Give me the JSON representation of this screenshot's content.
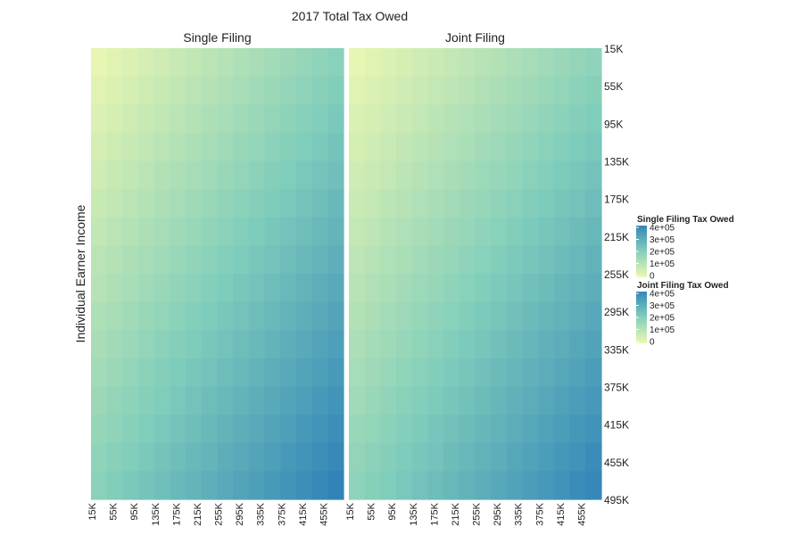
{
  "chart_data": {
    "type": "heatmap",
    "title": "2017 Total Tax Owed",
    "ylabel": "Individual Earner Income",
    "xlabel": "",
    "panels": [
      {
        "name": "Single Filing",
        "z_corners": {
          "top_left": 0,
          "top_right": 190000,
          "bottom_left": 190000,
          "bottom_right": 420000
        }
      },
      {
        "name": "Joint Filing",
        "z_corners": {
          "top_left": 0,
          "top_right": 180000,
          "bottom_left": 180000,
          "bottom_right": 410000
        }
      }
    ],
    "x_ticks": [
      "15K",
      "55K",
      "95K",
      "135K",
      "175K",
      "215K",
      "255K",
      "295K",
      "335K",
      "375K",
      "415K",
      "455K"
    ],
    "y_ticks": [
      "15K",
      "55K",
      "95K",
      "135K",
      "175K",
      "215K",
      "255K",
      "295K",
      "335K",
      "375K",
      "415K",
      "455K",
      "495K"
    ],
    "x_range": [
      15000,
      495000
    ],
    "y_range": [
      15000,
      495000
    ],
    "legends": [
      {
        "title": "Single Filing Tax Owed",
        "labels": [
          "4e+05",
          "3e+05",
          "2e+05",
          "1e+05",
          "0"
        ],
        "values": [
          400000,
          300000,
          200000,
          100000,
          0
        ]
      },
      {
        "title": "Joint Filing Tax Owed",
        "labels": [
          "4e+05",
          "3e+05",
          "2e+05",
          "1e+05",
          "0"
        ],
        "values": [
          400000,
          300000,
          200000,
          100000,
          0
        ]
      }
    ],
    "colorscale": [
      "#edf8b1",
      "#7fcdbb",
      "#2c7fb8"
    ],
    "z_range": [
      0,
      420000
    ]
  }
}
